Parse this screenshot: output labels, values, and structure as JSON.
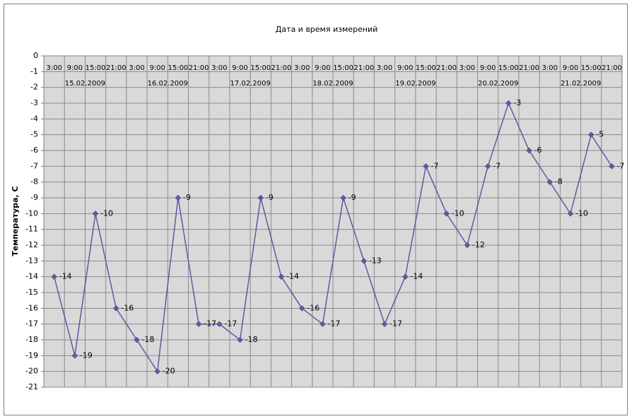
{
  "chart_data": {
    "type": "line",
    "title": "Дата и время измерений",
    "y_label": "Температура, С",
    "categories": [
      "3:00",
      "9:00",
      "15:00",
      "21:00",
      "3:00",
      "9:00",
      "15:00",
      "21:00",
      "3:00",
      "9:00",
      "15:00",
      "21:00",
      "3:00",
      "9:00",
      "15:00",
      "21:00",
      "3:00",
      "9:00",
      "15:00",
      "21:00",
      "3:00",
      "9:00",
      "15:00",
      "21:00",
      "3:00",
      "9:00",
      "15:00",
      "21:00"
    ],
    "group_labels": [
      "15.02.2009",
      "16.02.2009",
      "17.02.2009",
      "18.02.2009",
      "19.02.2009",
      "20.02.2009",
      "21.02.2009"
    ],
    "series": [
      {
        "name": "Температура",
        "color": "#5c5c9e",
        "values": [
          -14,
          -19,
          -10,
          -16,
          -18,
          -20,
          -9,
          -17,
          -17,
          -18,
          -9,
          -14,
          -16,
          -17,
          -9,
          -13,
          -17,
          -14,
          -7,
          -10,
          -12,
          -7,
          -3,
          -6,
          -8,
          -10,
          -5,
          -7
        ]
      }
    ],
    "ylim": [
      -21,
      0
    ],
    "yticks": [
      0,
      -1,
      -2,
      -3,
      -4,
      -5,
      -6,
      -7,
      -8,
      -9,
      -10,
      -11,
      -12,
      -13,
      -14,
      -15,
      -16,
      -17,
      -18,
      -19,
      -20,
      -21
    ],
    "grid": true
  }
}
